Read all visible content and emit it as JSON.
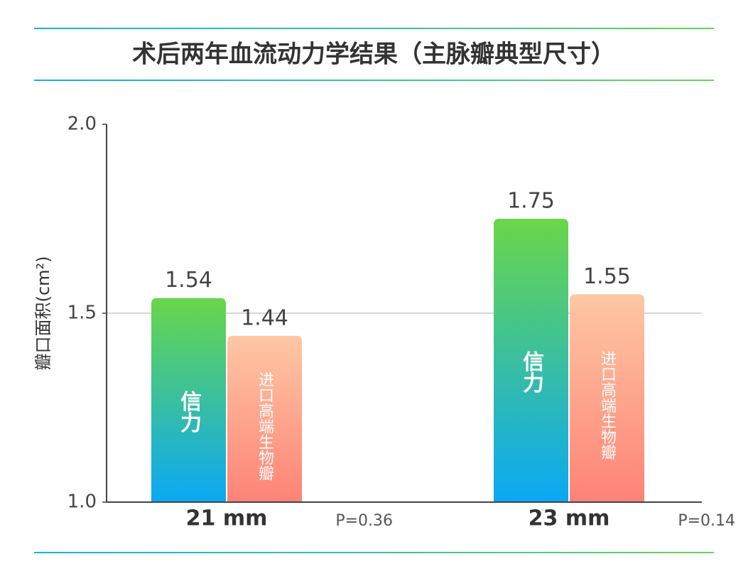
{
  "chart_data": {
    "type": "bar",
    "title": "术后两年血流动力学结果（主脉瓣典型尺寸）",
    "y_label": "瓣口面积(cm²)",
    "categories": [
      "21 mm",
      "23 mm"
    ],
    "annotations": [
      "P=0.36",
      "P=0.14"
    ],
    "series": [
      {
        "name": "信力",
        "color": [
          "#6ad64a",
          "#0aa8f5"
        ],
        "values": [
          1.54,
          1.75
        ]
      },
      {
        "name": "进口高端生物瓣",
        "color": [
          "#ffc7a4",
          "#fd8377"
        ],
        "values": [
          1.44,
          1.55
        ]
      }
    ],
    "ylim": [
      1.0,
      2.0
    ],
    "yticks": [
      {
        "value": 1.0,
        "label": "1.0"
      },
      {
        "value": 1.5,
        "label": "1.5"
      },
      {
        "value": 2.0,
        "label": "2.0"
      }
    ],
    "grid": true
  }
}
